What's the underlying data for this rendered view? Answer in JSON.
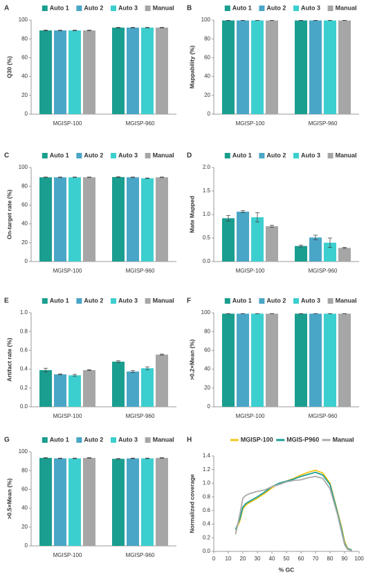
{
  "chart_data": [
    {
      "panel_label": "A",
      "type": "bar",
      "y_label": "Q30 (%)",
      "categories": [
        "MGISP-100",
        "MGISP-960"
      ],
      "ylim": [
        0,
        100
      ],
      "yticks": [
        0,
        20,
        40,
        60,
        80,
        100
      ],
      "series": [
        {
          "name": "Auto 1",
          "color": "#1a9e8f",
          "values": [
            89,
            92
          ],
          "errors": [
            0.4,
            0.3
          ]
        },
        {
          "name": "Auto 2",
          "color": "#4aa6c6",
          "values": [
            89,
            92
          ],
          "errors": [
            0.3,
            0.3
          ]
        },
        {
          "name": "Auto 3",
          "color": "#3ccfcf",
          "values": [
            89,
            92
          ],
          "errors": [
            0.3,
            0.3
          ]
        },
        {
          "name": "Manual",
          "color": "#a6a6a6",
          "values": [
            89,
            92
          ],
          "errors": [
            0.3,
            0.3
          ]
        }
      ]
    },
    {
      "panel_label": "B",
      "type": "bar",
      "y_label": "Mappability (%)",
      "categories": [
        "MGISP-100",
        "MGISP-960"
      ],
      "ylim": [
        0,
        100
      ],
      "yticks": [
        0,
        20,
        40,
        60,
        80,
        100
      ],
      "series": [
        {
          "name": "Auto 1",
          "color": "#1a9e8f",
          "values": [
            99.6,
            99.6
          ],
          "errors": [
            0.1,
            0.1
          ]
        },
        {
          "name": "Auto 2",
          "color": "#4aa6c6",
          "values": [
            99.6,
            99.6
          ],
          "errors": [
            0.1,
            0.1
          ]
        },
        {
          "name": "Auto 3",
          "color": "#3ccfcf",
          "values": [
            99.6,
            99.6
          ],
          "errors": [
            0.1,
            0.1
          ]
        },
        {
          "name": "Manual",
          "color": "#a6a6a6",
          "values": [
            99.6,
            99.6
          ],
          "errors": [
            0.1,
            0.1
          ]
        }
      ]
    },
    {
      "panel_label": "C",
      "type": "bar",
      "y_label": "On-target rate (%)",
      "categories": [
        "MGISP-100",
        "MGISP-960"
      ],
      "ylim": [
        0,
        100
      ],
      "yticks": [
        0,
        20,
        40,
        60,
        80,
        100
      ],
      "series": [
        {
          "name": "Auto 1",
          "color": "#1a9e8f",
          "values": [
            89.5,
            89.8
          ],
          "errors": [
            0.3,
            0.3
          ]
        },
        {
          "name": "Auto 2",
          "color": "#4aa6c6",
          "values": [
            89.5,
            89.5
          ],
          "errors": [
            0.3,
            0.3
          ]
        },
        {
          "name": "Auto 3",
          "color": "#3ccfcf",
          "values": [
            89.5,
            88.5
          ],
          "errors": [
            0.3,
            0.3
          ]
        },
        {
          "name": "Manual",
          "color": "#a6a6a6",
          "values": [
            89.5,
            89.5
          ],
          "errors": [
            0.3,
            0.3
          ]
        }
      ]
    },
    {
      "panel_label": "D",
      "type": "bar",
      "y_label": "Mate Mapped",
      "categories": [
        "MGISP-100",
        "MGISP-960"
      ],
      "ylim": [
        0,
        2
      ],
      "yticks": [
        {
          "value": 0,
          "label": "0.0"
        },
        0.5,
        {
          "value": 1,
          "label": "1.0"
        },
        1.5,
        {
          "value": 2,
          "label": "2.0"
        }
      ],
      "series": [
        {
          "name": "Auto 1",
          "color": "#1a9e8f",
          "values": [
            0.92,
            0.33
          ],
          "errors": [
            0.06,
            0.02
          ]
        },
        {
          "name": "Auto 2",
          "color": "#4aa6c6",
          "values": [
            1.06,
            0.51
          ],
          "errors": [
            0.02,
            0.05
          ]
        },
        {
          "name": "Auto 3",
          "color": "#3ccfcf",
          "values": [
            0.94,
            0.4
          ],
          "errors": [
            0.1,
            0.1
          ]
        },
        {
          "name": "Manual",
          "color": "#a6a6a6",
          "values": [
            0.75,
            0.29
          ],
          "errors": [
            0.02,
            0.01
          ]
        }
      ]
    },
    {
      "panel_label": "E",
      "type": "bar",
      "y_label": "Artifact rate (%)",
      "categories": [
        "MGISP-100",
        "MGISP-960"
      ],
      "ylim": [
        0,
        1
      ],
      "yticks": [
        {
          "value": 0,
          "label": "0.0"
        },
        0.2,
        0.4,
        0.6,
        0.8,
        {
          "value": 1,
          "label": "1.0"
        }
      ],
      "series": [
        {
          "name": "Auto 1",
          "color": "#1a9e8f",
          "values": [
            0.39,
            0.48
          ],
          "errors": [
            0.02,
            0.01
          ]
        },
        {
          "name": "Auto 2",
          "color": "#4aa6c6",
          "values": [
            0.345,
            0.375
          ],
          "errors": [
            0.005,
            0.01
          ]
        },
        {
          "name": "Auto 3",
          "color": "#3ccfcf",
          "values": [
            0.335,
            0.41
          ],
          "errors": [
            0.01,
            0.015
          ]
        },
        {
          "name": "Manual",
          "color": "#a6a6a6",
          "values": [
            0.39,
            0.555
          ],
          "errors": [
            0.005,
            0.005
          ]
        }
      ]
    },
    {
      "panel_label": "F",
      "type": "bar",
      "y_label": ">0.2×Mean (%)",
      "categories": [
        "MGISP-100",
        "MGISP-960"
      ],
      "ylim": [
        0,
        100
      ],
      "yticks": [
        0,
        20,
        40,
        60,
        80,
        100
      ],
      "series": [
        {
          "name": "Auto 1",
          "color": "#1a9e8f",
          "values": [
            99,
            99
          ],
          "errors": [
            0.1,
            0.1
          ]
        },
        {
          "name": "Auto 2",
          "color": "#4aa6c6",
          "values": [
            99,
            99
          ],
          "errors": [
            0.1,
            0.1
          ]
        },
        {
          "name": "Auto 3",
          "color": "#3ccfcf",
          "values": [
            99,
            99
          ],
          "errors": [
            0.1,
            0.1
          ]
        },
        {
          "name": "Manual",
          "color": "#a6a6a6",
          "values": [
            99,
            99
          ],
          "errors": [
            0.1,
            0.1
          ]
        }
      ]
    },
    {
      "panel_label": "G",
      "type": "bar",
      "y_label": ">0.5×Mean (%)",
      "categories": [
        "MGISP-100",
        "MGISP-960"
      ],
      "ylim": [
        0,
        100
      ],
      "yticks": [
        0,
        20,
        40,
        60,
        80,
        100
      ],
      "series": [
        {
          "name": "Auto 1",
          "color": "#1a9e8f",
          "values": [
            93.5,
            92.5
          ],
          "errors": [
            0.3,
            0.3
          ]
        },
        {
          "name": "Auto 2",
          "color": "#4aa6c6",
          "values": [
            93,
            93
          ],
          "errors": [
            0.3,
            0.3
          ]
        },
        {
          "name": "Auto 3",
          "color": "#3ccfcf",
          "values": [
            93,
            93
          ],
          "errors": [
            0.3,
            0.3
          ]
        },
        {
          "name": "Manual",
          "color": "#a6a6a6",
          "values": [
            93.5,
            93.5
          ],
          "errors": [
            0.3,
            0.3
          ]
        }
      ]
    },
    {
      "panel_label": "H",
      "type": "line",
      "y_label": "Normalized coverage",
      "x_label": "% GC",
      "x": [
        15,
        18,
        20,
        22,
        25,
        30,
        35,
        40,
        45,
        50,
        55,
        60,
        65,
        70,
        75,
        80,
        85,
        88,
        90,
        92,
        95
      ],
      "xlim": [
        0,
        100
      ],
      "xticks": [
        0,
        10,
        20,
        30,
        40,
        50,
        60,
        70,
        80,
        90,
        100
      ],
      "ylim": [
        0,
        1.4
      ],
      "yticks": [
        {
          "value": 0,
          "label": "0.0"
        },
        0.2,
        0.4,
        0.6,
        0.8,
        {
          "value": 1,
          "label": "1.0"
        },
        1.2,
        1.4
      ],
      "series": [
        {
          "name": "MGISP-100",
          "color": "#f5c518",
          "values": [
            0.3,
            0.45,
            0.62,
            0.68,
            0.72,
            0.78,
            0.85,
            0.93,
            1.0,
            1.03,
            1.07,
            1.12,
            1.16,
            1.19,
            1.15,
            1.0,
            0.6,
            0.35,
            0.15,
            0.05,
            0.02
          ]
        },
        {
          "name": "MGIS-P960",
          "color": "#1a9e96",
          "values": [
            0.32,
            0.48,
            0.65,
            0.7,
            0.74,
            0.8,
            0.87,
            0.95,
            1.0,
            1.03,
            1.06,
            1.1,
            1.13,
            1.16,
            1.12,
            0.98,
            0.58,
            0.32,
            0.12,
            0.04,
            0.02
          ]
        },
        {
          "name": "Manual",
          "color": "#aaaaaa",
          "values": [
            0.25,
            0.55,
            0.78,
            0.82,
            0.85,
            0.88,
            0.9,
            0.95,
            0.98,
            1.02,
            1.04,
            1.05,
            1.08,
            1.1,
            1.07,
            0.92,
            0.55,
            0.28,
            0.1,
            0.03,
            0.01
          ]
        }
      ]
    }
  ]
}
